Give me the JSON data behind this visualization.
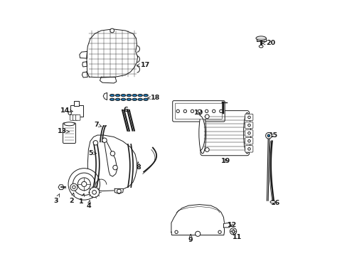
{
  "bg_color": "#ffffff",
  "line_color": "#1a1a1a",
  "fig_width": 4.89,
  "fig_height": 3.6,
  "dpi": 100,
  "label_positions": {
    "1": {
      "arrow_to": [
        0.148,
        0.245
      ],
      "label_at": [
        0.138,
        0.21
      ]
    },
    "2": {
      "arrow_to": [
        0.108,
        0.248
      ],
      "label_at": [
        0.098,
        0.213
      ]
    },
    "3": {
      "arrow_to": [
        0.052,
        0.243
      ],
      "label_at": [
        0.038,
        0.215
      ]
    },
    "4": {
      "arrow_to": [
        0.17,
        0.218
      ],
      "label_at": [
        0.167,
        0.195
      ]
    },
    "5": {
      "arrow_to": [
        0.198,
        0.4
      ],
      "label_at": [
        0.173,
        0.402
      ]
    },
    "6": {
      "arrow_to": [
        0.33,
        0.565
      ],
      "label_at": [
        0.31,
        0.572
      ]
    },
    "7": {
      "arrow_to": [
        0.218,
        0.505
      ],
      "label_at": [
        0.196,
        0.513
      ]
    },
    "8": {
      "arrow_to": [
        0.36,
        0.368
      ],
      "label_at": [
        0.36,
        0.345
      ]
    },
    "9": {
      "arrow_to": [
        0.566,
        0.085
      ],
      "label_at": [
        0.566,
        0.062
      ]
    },
    "10": {
      "arrow_to": [
        0.608,
        0.54
      ],
      "label_at": [
        0.598,
        0.56
      ]
    },
    "11": {
      "arrow_to": [
        0.73,
        0.093
      ],
      "label_at": [
        0.748,
        0.072
      ]
    },
    "12": {
      "arrow_to": [
        0.712,
        0.118
      ],
      "label_at": [
        0.73,
        0.118
      ]
    },
    "13": {
      "arrow_to": [
        0.092,
        0.485
      ],
      "label_at": [
        0.063,
        0.487
      ]
    },
    "14": {
      "arrow_to": [
        0.106,
        0.565
      ],
      "label_at": [
        0.073,
        0.567
      ]
    },
    "15": {
      "arrow_to": [
        0.87,
        0.465
      ],
      "label_at": [
        0.89,
        0.472
      ]
    },
    "16": {
      "arrow_to": [
        0.882,
        0.218
      ],
      "label_at": [
        0.898,
        0.205
      ]
    },
    "17": {
      "arrow_to": [
        0.345,
        0.745
      ],
      "label_at": [
        0.388,
        0.748
      ]
    },
    "18": {
      "arrow_to": [
        0.395,
        0.618
      ],
      "label_at": [
        0.428,
        0.618
      ]
    },
    "19": {
      "arrow_to": [
        0.698,
        0.388
      ],
      "label_at": [
        0.705,
        0.37
      ]
    },
    "20": {
      "arrow_to": [
        0.845,
        0.832
      ],
      "label_at": [
        0.88,
        0.832
      ]
    }
  }
}
